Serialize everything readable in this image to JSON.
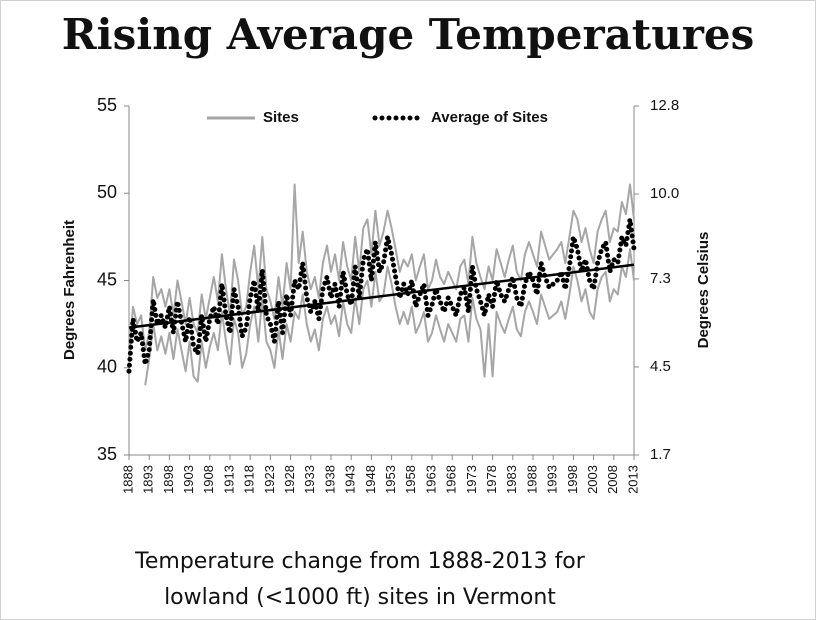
{
  "chart_data": {
    "type": "line",
    "title": "Rising Average Temperatures",
    "caption_lines": [
      "Temperature change from 1888-2013 for",
      "lowland (<1000 ft) sites in Vermont"
    ],
    "ylabel": "Degrees Fahrenheit",
    "y2label": "Degrees Celsius",
    "x": [
      1888,
      1889,
      1890,
      1891,
      1892,
      1893,
      1894,
      1895,
      1896,
      1897,
      1898,
      1899,
      1900,
      1901,
      1902,
      1903,
      1904,
      1905,
      1906,
      1907,
      1908,
      1909,
      1910,
      1911,
      1912,
      1913,
      1914,
      1915,
      1916,
      1917,
      1918,
      1919,
      1920,
      1921,
      1922,
      1923,
      1924,
      1925,
      1926,
      1927,
      1928,
      1929,
      1930,
      1931,
      1932,
      1933,
      1934,
      1935,
      1936,
      1937,
      1938,
      1939,
      1940,
      1941,
      1942,
      1943,
      1944,
      1945,
      1946,
      1947,
      1948,
      1949,
      1950,
      1951,
      1952,
      1953,
      1954,
      1955,
      1956,
      1957,
      1958,
      1959,
      1960,
      1961,
      1962,
      1963,
      1964,
      1965,
      1966,
      1967,
      1968,
      1969,
      1970,
      1971,
      1972,
      1973,
      1974,
      1975,
      1976,
      1977,
      1978,
      1979,
      1980,
      1981,
      1982,
      1983,
      1984,
      1985,
      1986,
      1987,
      1988,
      1989,
      1990,
      1991,
      1992,
      1993,
      1994,
      1995,
      1996,
      1997,
      1998,
      1999,
      2000,
      2001,
      2002,
      2003,
      2004,
      2005,
      2006,
      2007,
      2008,
      2009,
      2010,
      2011,
      2012,
      2013
    ],
    "series": [
      {
        "name": "Sites",
        "color": "#a6a6a6",
        "values": [
          40.5,
          43.5,
          42.5,
          43.0,
          41.0,
          42.0,
          45.2,
          44.0,
          44.5,
          43.5,
          44.5,
          43.0,
          45.0,
          43.8,
          42.5,
          44.0,
          42.5,
          42.0,
          44.2,
          42.8,
          44.0,
          45.2,
          43.8,
          46.5,
          44.5,
          43.0,
          46.2,
          45.0,
          43.0,
          43.5,
          45.5,
          47.0,
          44.5,
          47.5,
          44.5,
          43.8,
          42.8,
          45.2,
          43.5,
          46.0,
          44.5,
          50.5,
          46.0,
          47.8,
          45.5,
          44.5,
          45.2,
          44.0,
          46.0,
          47.0,
          45.5,
          46.5,
          45.0,
          47.2,
          45.8,
          45.0,
          47.5,
          45.5,
          48.0,
          48.5,
          46.5,
          49.0,
          47.0,
          47.8,
          49.0,
          48.0,
          46.8,
          45.5,
          46.2,
          45.8,
          46.5,
          45.0,
          45.8,
          46.5,
          44.5,
          45.0,
          46.2,
          45.2,
          44.8,
          45.5,
          45.0,
          44.5,
          45.8,
          46.2,
          44.8,
          47.5,
          46.0,
          45.2,
          44.5,
          45.8,
          45.0,
          46.8,
          46.0,
          45.2,
          46.2,
          47.0,
          45.5,
          45.0,
          46.5,
          47.2,
          46.5,
          45.8,
          47.8,
          47.0,
          46.2,
          46.5,
          46.8,
          47.2,
          46.0,
          47.5,
          49.0,
          48.5,
          47.2,
          48.0,
          46.8,
          46.0,
          47.8,
          48.5,
          49.0,
          47.2,
          48.0,
          47.8,
          49.5,
          48.8,
          50.5,
          48.5
        ]
      },
      {
        "name": "Sites",
        "color": "#a6a6a6",
        "values": [
          null,
          null,
          null,
          null,
          39.0,
          40.5,
          42.5,
          41.0,
          41.8,
          40.8,
          42.0,
          40.5,
          42.2,
          41.0,
          39.8,
          41.5,
          39.5,
          39.2,
          41.5,
          40.0,
          41.2,
          42.0,
          41.0,
          43.2,
          41.5,
          40.2,
          42.8,
          42.0,
          40.0,
          40.8,
          42.5,
          43.5,
          41.5,
          44.0,
          41.5,
          41.0,
          40.0,
          42.2,
          40.5,
          42.5,
          41.5,
          43.2,
          42.8,
          44.2,
          42.5,
          41.5,
          42.2,
          41.0,
          42.8,
          43.5,
          42.5,
          43.0,
          41.8,
          43.8,
          42.5,
          42.0,
          44.0,
          42.5,
          44.5,
          45.0,
          43.5,
          45.5,
          43.8,
          44.2,
          45.8,
          44.8,
          43.5,
          42.5,
          43.2,
          42.5,
          43.5,
          42.0,
          42.5,
          43.2,
          41.5,
          42.0,
          43.0,
          42.2,
          41.5,
          42.5,
          42.0,
          41.5,
          42.8,
          43.0,
          41.5,
          44.0,
          42.8,
          42.2,
          39.5,
          42.5,
          39.5,
          43.2,
          42.5,
          42.0,
          42.8,
          43.5,
          42.2,
          41.8,
          43.2,
          43.8,
          43.2,
          42.5,
          44.2,
          43.5,
          42.8,
          43.0,
          43.2,
          43.8,
          42.8,
          44.2,
          45.8,
          45.0,
          43.8,
          44.5,
          43.2,
          42.8,
          44.5,
          45.2,
          45.5,
          43.8,
          44.5,
          44.2,
          45.8,
          45.2,
          46.8,
          45.0
        ]
      },
      {
        "name": "Average of Sites",
        "color": "#000000",
        "dotted": true,
        "values": [
          39.8,
          42.8,
          41.5,
          42.0,
          40.2,
          41.0,
          43.9,
          42.5,
          43.0,
          42.3,
          43.5,
          42.0,
          43.8,
          42.6,
          41.5,
          42.9,
          41.2,
          40.8,
          43.0,
          41.5,
          42.8,
          43.5,
          42.5,
          44.8,
          43.0,
          42.0,
          44.5,
          43.5,
          41.8,
          42.3,
          44.0,
          45.0,
          43.2,
          45.6,
          43.0,
          42.5,
          41.5,
          43.8,
          42.0,
          44.2,
          43.0,
          45.0,
          44.5,
          46.0,
          44.0,
          43.2,
          43.8,
          42.8,
          44.5,
          45.2,
          44.0,
          44.8,
          43.5,
          45.5,
          44.2,
          43.6,
          45.8,
          44.0,
          46.2,
          46.8,
          45.0,
          47.2,
          45.5,
          46.0,
          47.5,
          46.5,
          45.2,
          44.0,
          44.8,
          44.2,
          45.0,
          43.5,
          44.2,
          44.8,
          43.0,
          43.6,
          44.5,
          43.8,
          43.2,
          44.0,
          43.5,
          43.0,
          44.2,
          44.6,
          43.2,
          45.8,
          44.5,
          43.8,
          43.0,
          44.2,
          43.5,
          45.0,
          44.2,
          43.8,
          44.5,
          45.2,
          44.0,
          43.5,
          44.8,
          45.5,
          45.0,
          44.2,
          46.0,
          45.2,
          44.6,
          44.8,
          45.0,
          45.5,
          44.5,
          45.8,
          47.5,
          46.8,
          45.5,
          46.2,
          45.0,
          44.5,
          46.0,
          46.8,
          47.2,
          45.5,
          46.2,
          46.0,
          47.5,
          47.0,
          48.5,
          46.8
        ]
      }
    ],
    "trend": {
      "x": [
        1888,
        2013
      ],
      "values": [
        42.3,
        45.9
      ],
      "color": "#000000"
    },
    "xlim": [
      1888,
      2013
    ],
    "xticks": [
      1888,
      1893,
      1898,
      1903,
      1908,
      1913,
      1918,
      1923,
      1928,
      1933,
      1938,
      1943,
      1948,
      1953,
      1958,
      1963,
      1968,
      1973,
      1978,
      1983,
      1988,
      1993,
      1998,
      2003,
      2008,
      2013
    ],
    "ylim": [
      35,
      55
    ],
    "yticks": [
      35,
      40,
      45,
      50,
      55
    ],
    "y2lim": [
      1.7,
      12.8
    ],
    "y2ticks": [
      1.7,
      4.5,
      7.3,
      {
        "value": 10.0,
        "label": "10.0"
      },
      12.8
    ],
    "title_color": "#2e90a9"
  }
}
